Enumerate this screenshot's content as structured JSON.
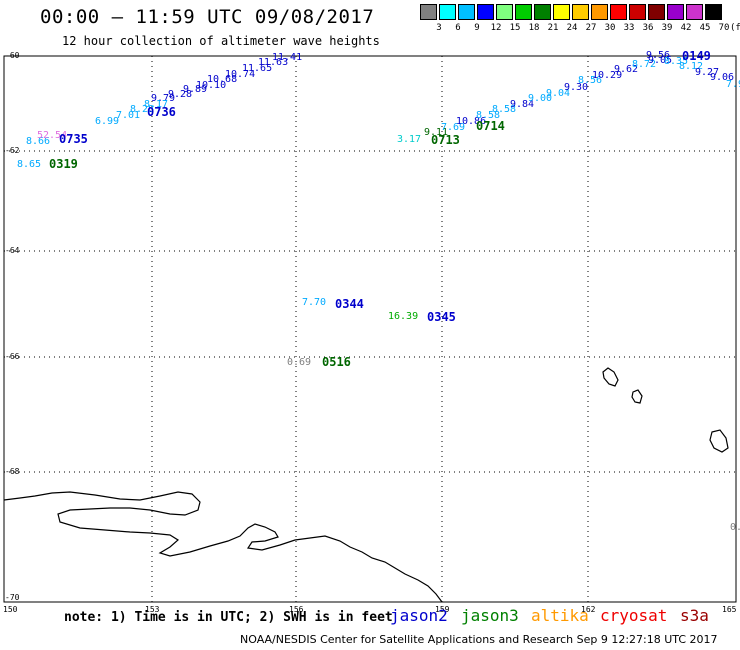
{
  "header": {
    "title": "00:00 – 11:59 UTC 09/08/2017",
    "subtitle": "12 hour collection of altimeter wave heights"
  },
  "legend": {
    "labels": [
      "3",
      "6",
      "9",
      "12",
      "15",
      "18",
      "21",
      "24",
      "27",
      "30",
      "33",
      "36",
      "39",
      "42",
      "45",
      "70",
      "(ft)"
    ],
    "colors": [
      "#808080",
      "#00ffff",
      "#00bfff",
      "#0000ff",
      "#7fff7f",
      "#00cc00",
      "#008000",
      "#ffff00",
      "#ffcc00",
      "#ff9900",
      "#ff0000",
      "#cc0000",
      "#800000",
      "#9900cc",
      "#cc33cc",
      "#000000"
    ]
  },
  "axes": {
    "lat_labels": [
      "-60",
      "-62",
      "-64",
      "-66",
      "-68",
      "-70"
    ],
    "lon_labels": [
      "150",
      "153",
      "156",
      "159",
      "162",
      "165"
    ]
  },
  "observations": [
    {
      "text": "11.41",
      "color": "#0000cc"
    },
    {
      "text": "11.63",
      "color": "#0000cc"
    },
    {
      "text": "11.65",
      "color": "#0000cc"
    },
    {
      "text": "10.74",
      "color": "#0000cc"
    },
    {
      "text": "10.68",
      "color": "#0000cc"
    },
    {
      "text": "10.10",
      "color": "#0000cc"
    },
    {
      "text": "9.89",
      "color": "#0000cc"
    },
    {
      "text": "9.28",
      "color": "#0000cc"
    },
    {
      "text": "9.79",
      "color": "#0000cc"
    },
    {
      "text": "8.17",
      "color": "#00aaff"
    },
    {
      "text": "8.28",
      "color": "#00aaff"
    },
    {
      "text": "7.01",
      "color": "#00aaff"
    },
    {
      "text": "6.99",
      "color": "#00aaff"
    },
    {
      "text": "8.66",
      "color": "#00aaff"
    },
    {
      "text": "52.54",
      "color": "#e070e0"
    },
    {
      "text": "8.65",
      "color": "#00aaff"
    },
    {
      "text": "3.17",
      "color": "#00cccc"
    },
    {
      "text": "9.11",
      "color": "#006600"
    },
    {
      "text": "7.69",
      "color": "#00aaff"
    },
    {
      "text": "10.86",
      "color": "#0000cc"
    },
    {
      "text": "8.58",
      "color": "#00aaff"
    },
    {
      "text": "8.58",
      "color": "#00aaff"
    },
    {
      "text": "9.84",
      "color": "#0000cc"
    },
    {
      "text": "9.00",
      "color": "#00aaff"
    },
    {
      "text": "9.04",
      "color": "#00aaff"
    },
    {
      "text": "9.30",
      "color": "#0000cc"
    },
    {
      "text": "8.56",
      "color": "#00aaff"
    },
    {
      "text": "10.29",
      "color": "#0000cc"
    },
    {
      "text": "9.62",
      "color": "#0000cc"
    },
    {
      "text": "8.72",
      "color": "#00aaff"
    },
    {
      "text": "9.56",
      "color": "#0000cc"
    },
    {
      "text": "9.05",
      "color": "#0000cc"
    },
    {
      "text": "8.35",
      "color": "#00aaff"
    },
    {
      "text": "8.12",
      "color": "#00aaff"
    },
    {
      "text": "9.27",
      "color": "#0000cc"
    },
    {
      "text": "9.06",
      "color": "#0000cc"
    },
    {
      "text": "7.9",
      "color": "#00aaff"
    },
    {
      "text": "7.70",
      "color": "#00aaff"
    },
    {
      "text": "16.39",
      "color": "#00aa00"
    },
    {
      "text": "0.69",
      "color": "#808080"
    },
    {
      "text": "0.",
      "color": "#808080"
    }
  ],
  "passes": [
    {
      "text": "0736",
      "color": "#0000cc"
    },
    {
      "text": "0735",
      "color": "#0000cc"
    },
    {
      "text": "0319",
      "color": "#006600"
    },
    {
      "text": "0713",
      "color": "#006600"
    },
    {
      "text": "0714",
      "color": "#006600"
    },
    {
      "text": "0149",
      "color": "#0000cc"
    },
    {
      "text": "0344",
      "color": "#0000cc"
    },
    {
      "text": "0345",
      "color": "#0000cc"
    },
    {
      "text": "0516",
      "color": "#006600"
    }
  ],
  "footer": {
    "note": "note: 1) Time is in UTC; 2) SWH is in feet",
    "satellites": [
      {
        "name": "jason2",
        "color": "#0000cc"
      },
      {
        "name": "jason3",
        "color": "#008000"
      },
      {
        "name": "altika",
        "color": "#ff9900"
      },
      {
        "name": "cryosat",
        "color": "#ee0000"
      },
      {
        "name": "s3a",
        "color": "#990000"
      }
    ],
    "credit": "NOAA/NESDIS Center for Satellite Applications and Research   Sep  9 12:27:18 UTC 2017"
  }
}
